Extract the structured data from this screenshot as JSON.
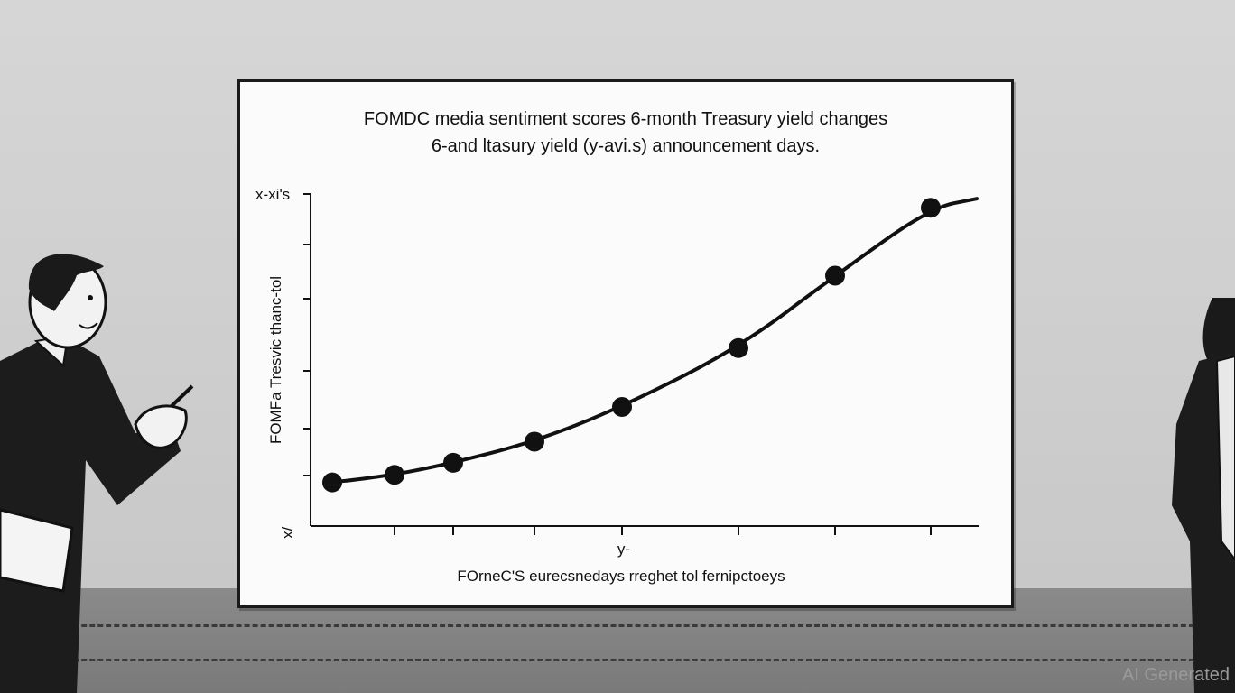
{
  "chart_data": {
    "type": "line",
    "title": "FOMDC media sentiment scores 6-month Treasury yield changes",
    "subtitle": "6-and ltasury yield (y-avi.s) announcement days.",
    "xlabel": "FOrneC'S eurecsnedays rreghet tol fernipctoeys",
    "ylabel": "FOMFa Tresvic thanc-tol",
    "y_top_label": "x-xi's",
    "y_bottom_label": "x/",
    "x_mid_label": "y-",
    "grid": false,
    "legend": "none",
    "x": [
      1,
      2,
      3,
      4,
      5,
      6,
      7,
      8
    ],
    "series": [
      {
        "values": [
          0.5,
          1.0,
          1.8,
          3.2,
          5.5,
          9.4,
          14.2,
          18.7
        ]
      }
    ],
    "line_end_value": 19.3,
    "ylim": [
      0,
      22
    ]
  },
  "watermark": "AI Generated",
  "colors": {
    "ink": "#111111",
    "board": "#fbfbfb",
    "wall": "#d2d2d2",
    "floor": "#7a7a7a"
  }
}
